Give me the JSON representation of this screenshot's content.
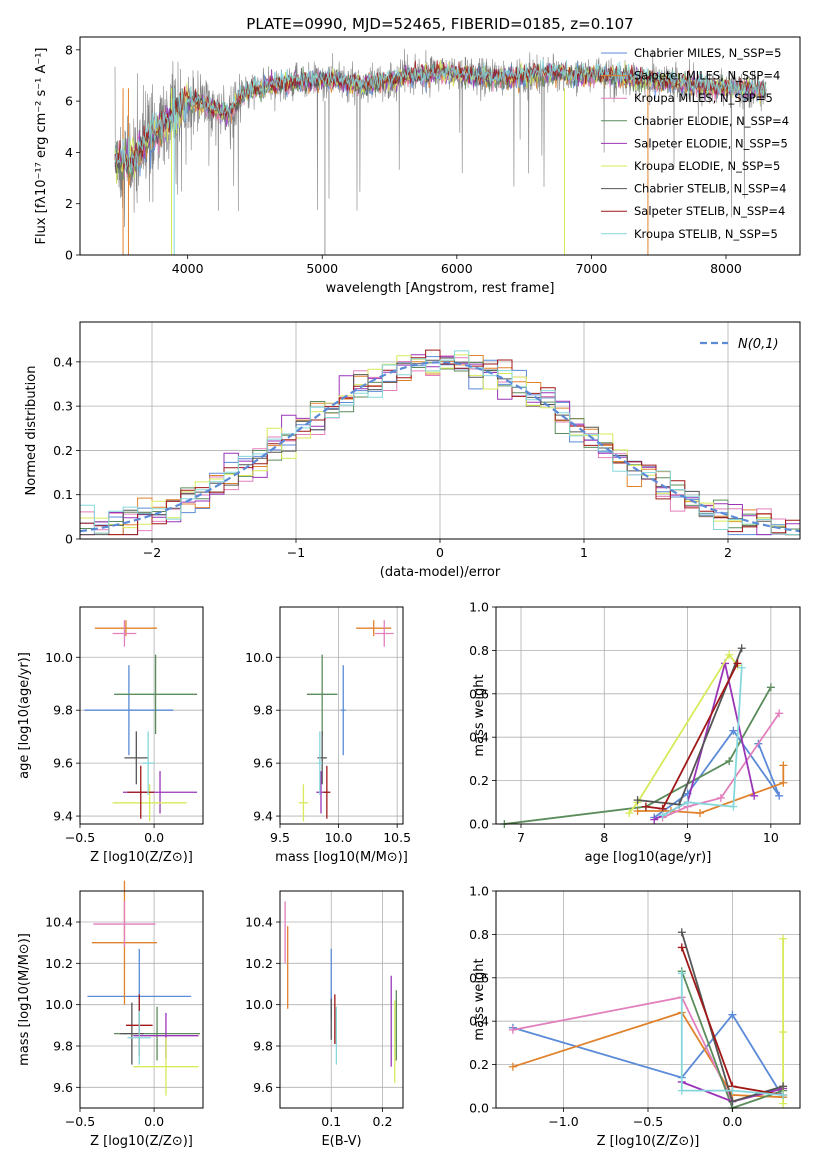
{
  "colors": {
    "chabrier_miles": "#5b8bd8",
    "salpeter_miles": "#e0822c",
    "kroupa_miles": "#e27fbd",
    "chabrier_elodie": "#5c8c5c",
    "salpeter_elodie": "#9a35b8",
    "kroupa_elodie": "#d8ea5a",
    "chabrier_stelib": "#555555",
    "salpeter_stelib": "#a01818",
    "kroupa_stelib": "#86d7dc",
    "spectrum_gray": "#808080",
    "gauss": "#5b8bd8"
  },
  "chart_data": [
    {
      "id": "spectrum",
      "type": "line",
      "title": "PLATE=0990, MJD=52465, FIBERID=0185, z=0.107",
      "xlabel": "wavelength [Angstrom, rest frame]",
      "ylabel": "Flux [fλ10⁻¹⁷ erg cm⁻² s⁻¹ A⁻¹]",
      "xlim": [
        3200,
        8550
      ],
      "ylim": [
        0,
        8.5
      ],
      "xticks": [
        4000,
        5000,
        6000,
        7000,
        8000
      ],
      "yticks": [
        0,
        2,
        4,
        6,
        8
      ],
      "grid": false,
      "legend_position": "top-right",
      "legend": [
        "Chabrier MILES, N_SSP=5",
        "Salpeter MILES, N_SSP=4",
        "Kroupa MILES, N_SSP=5",
        "Chabrier ELODIE, N_SSP=4",
        "Salpeter ELODIE, N_SSP=5",
        "Kroupa ELODIE, N_SSP=5",
        "Chabrier STELIB, N_SSP=4",
        "Salpeter STELIB, N_SSP=4",
        "Kroupa STELIB, N_SSP=5"
      ],
      "data_continuum": {
        "x": [
          3460,
          3600,
          3700,
          3800,
          3900,
          4000,
          4100,
          4200,
          4300,
          4400,
          4500,
          4700,
          4900,
          5100,
          5300,
          5500,
          5700,
          5900,
          6100,
          6300,
          6500,
          6700,
          6900,
          7100,
          7300,
          7500,
          7700,
          7900,
          8100,
          8300
        ],
        "y": [
          3.6,
          3.7,
          4.5,
          5.0,
          5.4,
          6.0,
          5.9,
          5.7,
          5.5,
          6.2,
          6.5,
          6.7,
          6.8,
          6.8,
          6.6,
          6.8,
          7.0,
          7.1,
          7.0,
          6.9,
          7.0,
          7.1,
          7.0,
          7.0,
          6.9,
          6.8,
          6.7,
          6.5,
          6.5,
          6.4
        ]
      }
    },
    {
      "id": "residuals",
      "type": "line",
      "xlabel": "(data-model)/error",
      "ylabel": "Normed distribution",
      "xlim": [
        -2.5,
        2.5
      ],
      "ylim": [
        0,
        0.49
      ],
      "xticks": [
        -2,
        -1,
        0,
        1,
        2
      ],
      "yticks": [
        0.0,
        0.1,
        0.2,
        0.3,
        0.4
      ],
      "grid": true,
      "legend_position": "top-right",
      "legend": [
        "N(0,1)"
      ]
    },
    {
      "id": "age_vs_Z",
      "type": "scatter",
      "xlabel": "Z [log10(Z/Z⊙)]",
      "ylabel": "age  [log10(age/yr)]",
      "xlim": [
        -0.5,
        0.33
      ],
      "ylim": [
        9.37,
        10.19
      ],
      "xticks": [
        -0.5,
        0.0
      ],
      "yticks": [
        9.4,
        9.6,
        9.8,
        10.0
      ],
      "grid": true,
      "points": [
        {
          "x": -0.17,
          "xerr": 0.3,
          "y": 9.8,
          "yerr": 0.17,
          "c": "chabrier_miles"
        },
        {
          "x": -0.19,
          "xerr": 0.21,
          "y": 10.11,
          "yerr": 0.03,
          "c": "salpeter_miles"
        },
        {
          "x": -0.2,
          "xerr": 0.08,
          "y": 10.09,
          "yerr": 0.05,
          "c": "kroupa_miles"
        },
        {
          "x": 0.01,
          "xerr": 0.28,
          "y": 9.86,
          "yerr": 0.15,
          "c": "chabrier_elodie"
        },
        {
          "x": 0.04,
          "xerr": 0.25,
          "y": 9.49,
          "yerr": 0.08,
          "c": "salpeter_elodie"
        },
        {
          "x": -0.03,
          "xerr": 0.25,
          "y": 9.45,
          "yerr": 0.07,
          "c": "kroupa_elodie"
        },
        {
          "x": -0.12,
          "xerr": 0.08,
          "y": 9.62,
          "yerr": 0.1,
          "c": "chabrier_stelib"
        },
        {
          "x": -0.09,
          "xerr": 0.09,
          "y": 9.49,
          "yerr": 0.1,
          "c": "salpeter_stelib"
        },
        {
          "x": -0.04,
          "xerr": 0.04,
          "y": 9.6,
          "yerr": 0.12,
          "c": "kroupa_stelib"
        }
      ]
    },
    {
      "id": "age_vs_mass",
      "type": "scatter",
      "xlabel": "mass [log10(M/M⊙)]",
      "xlim": [
        9.5,
        10.55
      ],
      "ylim": [
        9.37,
        10.19
      ],
      "xticks": [
        9.5,
        10.0,
        10.5
      ],
      "yticks": [
        9.4,
        9.6,
        9.8,
        10.0
      ],
      "grid": true,
      "points": [
        {
          "x": 10.04,
          "xerr": 0.02,
          "y": 9.8,
          "yerr": 0.17,
          "c": "chabrier_miles"
        },
        {
          "x": 10.3,
          "xerr": 0.15,
          "y": 10.11,
          "yerr": 0.03,
          "c": "salpeter_miles"
        },
        {
          "x": 10.39,
          "xerr": 0.08,
          "y": 10.09,
          "yerr": 0.05,
          "c": "kroupa_miles"
        },
        {
          "x": 9.86,
          "xerr": 0.13,
          "y": 9.86,
          "yerr": 0.15,
          "c": "chabrier_elodie"
        },
        {
          "x": 9.85,
          "xerr": 0.04,
          "y": 9.49,
          "yerr": 0.08,
          "c": "salpeter_elodie"
        },
        {
          "x": 9.7,
          "xerr": 0.04,
          "y": 9.45,
          "yerr": 0.07,
          "c": "kroupa_elodie"
        },
        {
          "x": 9.86,
          "xerr": 0.04,
          "y": 9.62,
          "yerr": 0.1,
          "c": "chabrier_stelib"
        },
        {
          "x": 9.9,
          "xerr": 0.03,
          "y": 9.49,
          "yerr": 0.1,
          "c": "salpeter_stelib"
        },
        {
          "x": 9.84,
          "xerr": 0.02,
          "y": 9.6,
          "yerr": 0.12,
          "c": "kroupa_stelib"
        }
      ]
    },
    {
      "id": "massweight_vs_age",
      "type": "line",
      "xlabel": "age  [log10(age/yr)]",
      "ylabel": "mass weight",
      "xlim": [
        6.7,
        10.35
      ],
      "ylim": [
        0,
        1.0
      ],
      "xticks": [
        7,
        8,
        9,
        10
      ],
      "yticks": [
        0.0,
        0.2,
        0.4,
        0.6,
        0.8,
        1.0
      ],
      "grid": true,
      "series": [
        {
          "c": "chabrier_miles",
          "x": [
            8.6,
            9.0,
            9.55,
            10.1,
            9.85
          ],
          "y": [
            0.03,
            0.14,
            0.43,
            0.13,
            0.37
          ]
        },
        {
          "c": "salpeter_miles",
          "x": [
            8.4,
            8.8,
            9.15,
            10.15,
            10.15
          ],
          "y": [
            0.06,
            0.06,
            0.05,
            0.19,
            0.27
          ]
        },
        {
          "c": "kroupa_miles",
          "x": [
            8.7,
            9.0,
            9.4,
            10.1
          ],
          "y": [
            0.03,
            0.08,
            0.12,
            0.51
          ]
        },
        {
          "c": "chabrier_elodie",
          "x": [
            6.8,
            8.5,
            9.5,
            10.0
          ],
          "y": [
            0.0,
            0.08,
            0.29,
            0.63
          ]
        },
        {
          "c": "salpeter_elodie",
          "x": [
            8.6,
            9.0,
            9.45,
            9.8
          ],
          "y": [
            0.02,
            0.1,
            0.74,
            0.13
          ]
        },
        {
          "c": "kroupa_elodie",
          "x": [
            8.3,
            8.4,
            9.5,
            9.6
          ],
          "y": [
            0.05,
            0.1,
            0.78,
            0.73
          ]
        },
        {
          "c": "chabrier_stelib",
          "x": [
            8.4,
            8.9,
            9.65
          ],
          "y": [
            0.11,
            0.09,
            0.81
          ]
        },
        {
          "c": "salpeter_stelib",
          "x": [
            8.5,
            8.7,
            9.6
          ],
          "y": [
            0.08,
            0.07,
            0.74
          ]
        },
        {
          "c": "kroupa_stelib",
          "x": [
            8.7,
            9.0,
            9.55,
            9.65
          ],
          "y": [
            0.04,
            0.1,
            0.08,
            0.72
          ]
        }
      ]
    },
    {
      "id": "mass_vs_Z",
      "type": "scatter",
      "xlabel": "Z [log10(Z/Z⊙)]",
      "ylabel": "mass [log10(M/M⊙)]",
      "xlim": [
        -0.5,
        0.33
      ],
      "ylim": [
        9.5,
        10.55
      ],
      "xticks": [
        -0.5,
        0.0
      ],
      "yticks": [
        9.6,
        9.8,
        10.0,
        10.2,
        10.4
      ],
      "grid": true,
      "points": [
        {
          "x": -0.1,
          "xerr": 0.35,
          "y": 10.04,
          "yerr": 0.23,
          "c": "chabrier_miles"
        },
        {
          "x": -0.2,
          "xerr": 0.22,
          "y": 10.3,
          "yerr": 0.3,
          "c": "salpeter_miles"
        },
        {
          "x": -0.2,
          "xerr": 0.21,
          "y": 10.39,
          "yerr": 0.11,
          "c": "kroupa_miles"
        },
        {
          "x": 0.02,
          "xerr": 0.29,
          "y": 9.86,
          "yerr": 0.13,
          "c": "chabrier_elodie"
        },
        {
          "x": 0.08,
          "xerr": 0.22,
          "y": 9.85,
          "yerr": 0.11,
          "c": "salpeter_elodie"
        },
        {
          "x": 0.08,
          "xerr": 0.22,
          "y": 9.7,
          "yerr": 0.14,
          "c": "kroupa_elodie"
        },
        {
          "x": -0.15,
          "xerr": 0.08,
          "y": 9.86,
          "yerr": 0.15,
          "c": "chabrier_stelib"
        },
        {
          "x": -0.1,
          "xerr": 0.09,
          "y": 9.9,
          "yerr": 0.15,
          "c": "salpeter_stelib"
        },
        {
          "x": -0.1,
          "xerr": 0.08,
          "y": 9.84,
          "yerr": 0.13,
          "c": "kroupa_stelib"
        }
      ]
    },
    {
      "id": "mass_vs_ebv",
      "type": "scatter",
      "xlabel": "E(B-V)",
      "xlim": [
        0.0,
        0.24
      ],
      "ylim": [
        9.5,
        10.55
      ],
      "xticks": [
        0.1,
        0.2
      ],
      "yticks": [
        9.6,
        9.8,
        10.0,
        10.2,
        10.4
      ],
      "grid": true,
      "points": [
        {
          "x": 0.1,
          "y": 10.1,
          "yerr": 0.17,
          "c": "chabrier_miles"
        },
        {
          "x": 0.015,
          "y": 10.18,
          "yerr": 0.2,
          "c": "salpeter_miles"
        },
        {
          "x": 0.01,
          "y": 10.35,
          "yerr": 0.15,
          "c": "kroupa_miles"
        },
        {
          "x": 0.227,
          "y": 9.9,
          "yerr": 0.17,
          "c": "chabrier_elodie"
        },
        {
          "x": 0.217,
          "y": 9.92,
          "yerr": 0.22,
          "c": "salpeter_elodie"
        },
        {
          "x": 0.224,
          "y": 9.82,
          "yerr": 0.2,
          "c": "kroupa_elodie"
        },
        {
          "x": 0.1,
          "y": 9.93,
          "yerr": 0.1,
          "c": "chabrier_stelib"
        },
        {
          "x": 0.107,
          "y": 9.93,
          "yerr": 0.12,
          "c": "salpeter_stelib"
        },
        {
          "x": 0.11,
          "y": 9.85,
          "yerr": 0.14,
          "c": "kroupa_stelib"
        }
      ]
    },
    {
      "id": "massweight_vs_Z",
      "type": "line",
      "xlabel": "Z [log10(Z/Z⊙)]",
      "ylabel": "mass weight",
      "xlim": [
        -1.4,
        0.4
      ],
      "ylim": [
        0,
        1.0
      ],
      "xticks": [
        -1.0,
        -0.5,
        0.0
      ],
      "yticks": [
        0.0,
        0.2,
        0.4,
        0.6,
        0.8,
        1.0
      ],
      "grid": true,
      "series": [
        {
          "c": "chabrier_miles",
          "x": [
            -1.3,
            -0.3,
            0.0,
            0.3
          ],
          "y": [
            0.37,
            0.14,
            0.43,
            0.05
          ]
        },
        {
          "c": "salpeter_miles",
          "x": [
            -1.3,
            -0.3,
            0.0,
            0.3
          ],
          "y": [
            0.19,
            0.44,
            0.06,
            0.05
          ]
        },
        {
          "c": "kroupa_miles",
          "x": [
            -1.3,
            -0.3,
            0.0,
            0.3
          ],
          "y": [
            0.36,
            0.51,
            0.03,
            0.09
          ]
        },
        {
          "c": "chabrier_elodie",
          "x": [
            -0.3,
            0.0,
            0.3
          ],
          "y": [
            0.63,
            0.0,
            0.08
          ]
        },
        {
          "c": "salpeter_elodie",
          "x": [
            -0.3,
            0.0,
            0.3
          ],
          "y": [
            0.12,
            0.03,
            0.09
          ]
        },
        {
          "c": "kroupa_elodie",
          "x": [
            0.3,
            0.3,
            0.3
          ],
          "y": [
            0.78,
            0.35,
            0.02
          ]
        },
        {
          "c": "chabrier_stelib",
          "x": [
            -0.3,
            0.0,
            0.3
          ],
          "y": [
            0.81,
            0.03,
            0.1
          ]
        },
        {
          "c": "salpeter_stelib",
          "x": [
            -0.3,
            0.0,
            0.3
          ],
          "y": [
            0.74,
            0.1,
            0.06
          ]
        },
        {
          "c": "kroupa_stelib",
          "x": [
            -0.3,
            -0.3,
            0.0,
            0.3
          ],
          "y": [
            0.62,
            0.08,
            0.08,
            0.06
          ]
        }
      ]
    }
  ]
}
